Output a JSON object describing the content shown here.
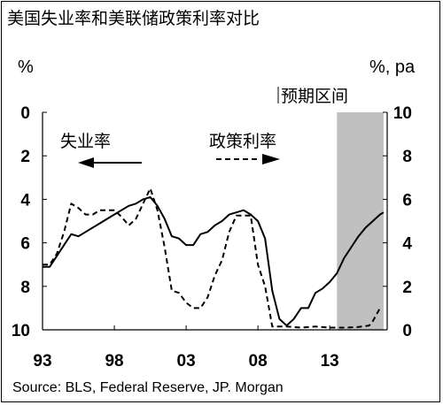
{
  "title": "美国失业率和美联储政策利率对比",
  "source": "Source: BLS, Federal Reserve,  JP. Morgan",
  "chart_data": {
    "type": "line",
    "left_axis": {
      "label": "%",
      "inverted": true,
      "range": [
        0,
        10
      ],
      "ticks": [
        "0",
        "2",
        "4",
        "6",
        "8",
        "10"
      ]
    },
    "right_axis": {
      "label": "%, pa",
      "range": [
        0,
        10
      ],
      "ticks": [
        "0",
        "2",
        "4",
        "6",
        "8",
        "10"
      ]
    },
    "x_axis": {
      "range": [
        1993,
        2017
      ],
      "ticks": [
        "93",
        "98",
        "03",
        "08",
        "13"
      ],
      "tick_years": [
        1993,
        1998,
        2003,
        2008,
        2013
      ]
    },
    "shaded_region": {
      "label": "预期区间",
      "x_start": 2013.5,
      "x_end": 2016.75,
      "color": "#c0c0c0"
    },
    "series": [
      {
        "name": "失业率",
        "axis": "left",
        "style": "solid",
        "arrow": "left",
        "points": [
          [
            1993,
            7.1
          ],
          [
            1993.5,
            7.1
          ],
          [
            1994,
            6.6
          ],
          [
            1994.5,
            6.1
          ],
          [
            1995,
            5.6
          ],
          [
            1995.5,
            5.7
          ],
          [
            1996,
            5.5
          ],
          [
            1996.5,
            5.3
          ],
          [
            1997,
            5.1
          ],
          [
            1997.5,
            4.9
          ],
          [
            1998,
            4.7
          ],
          [
            1998.5,
            4.5
          ],
          [
            1999,
            4.3
          ],
          [
            1999.5,
            4.2
          ],
          [
            2000,
            4.0
          ],
          [
            2000.5,
            3.9
          ],
          [
            2001,
            4.3
          ],
          [
            2001.5,
            4.9
          ],
          [
            2002,
            5.7
          ],
          [
            2002.5,
            5.8
          ],
          [
            2003,
            6.1
          ],
          [
            2003.5,
            6.1
          ],
          [
            2004,
            5.6
          ],
          [
            2004.5,
            5.5
          ],
          [
            2005,
            5.2
          ],
          [
            2005.5,
            5.0
          ],
          [
            2006,
            4.7
          ],
          [
            2006.5,
            4.6
          ],
          [
            2007,
            4.5
          ],
          [
            2007.5,
            4.7
          ],
          [
            2008,
            5.0
          ],
          [
            2008.5,
            5.8
          ],
          [
            2009,
            8.2
          ],
          [
            2009.5,
            9.5
          ],
          [
            2010,
            9.8
          ],
          [
            2010.5,
            9.5
          ],
          [
            2011,
            9.0
          ],
          [
            2011.5,
            9.0
          ],
          [
            2012,
            8.3
          ],
          [
            2012.5,
            8.1
          ],
          [
            2013,
            7.8
          ],
          [
            2013.5,
            7.4
          ],
          [
            2014,
            6.7
          ],
          [
            2014.5,
            6.2
          ],
          [
            2015,
            5.7
          ],
          [
            2015.5,
            5.3
          ],
          [
            2016,
            5.0
          ],
          [
            2016.5,
            4.7
          ],
          [
            2016.75,
            4.6
          ]
        ]
      },
      {
        "name": "政策利率",
        "axis": "right",
        "style": "dashed",
        "arrow": "right",
        "points": [
          [
            1993,
            3.0
          ],
          [
            1993.5,
            3.0
          ],
          [
            1994,
            3.5
          ],
          [
            1994.5,
            4.5
          ],
          [
            1995,
            5.8
          ],
          [
            1995.5,
            5.6
          ],
          [
            1996,
            5.3
          ],
          [
            1996.5,
            5.3
          ],
          [
            1997,
            5.5
          ],
          [
            1997.5,
            5.5
          ],
          [
            1998,
            5.5
          ],
          [
            1998.5,
            5.2
          ],
          [
            1999,
            4.8
          ],
          [
            1999.5,
            5.1
          ],
          [
            2000,
            5.8
          ],
          [
            2000.5,
            6.5
          ],
          [
            2001,
            5.5
          ],
          [
            2001.5,
            3.8
          ],
          [
            2002,
            1.8
          ],
          [
            2002.5,
            1.7
          ],
          [
            2003,
            1.25
          ],
          [
            2003.5,
            1.0
          ],
          [
            2004,
            1.0
          ],
          [
            2004.5,
            1.5
          ],
          [
            2005,
            2.5
          ],
          [
            2005.5,
            3.2
          ],
          [
            2006,
            4.5
          ],
          [
            2006.5,
            5.25
          ],
          [
            2007,
            5.25
          ],
          [
            2007.5,
            5.25
          ],
          [
            2008,
            3.0
          ],
          [
            2008.5,
            2.0
          ],
          [
            2009,
            0.15
          ],
          [
            2009.5,
            0.15
          ],
          [
            2010,
            0.15
          ],
          [
            2011,
            0.1
          ],
          [
            2012,
            0.15
          ],
          [
            2013,
            0.1
          ],
          [
            2014,
            0.1
          ],
          [
            2015,
            0.13
          ],
          [
            2015.75,
            0.2
          ],
          [
            2016,
            0.4
          ],
          [
            2016.5,
            1.0
          ]
        ]
      }
    ]
  }
}
